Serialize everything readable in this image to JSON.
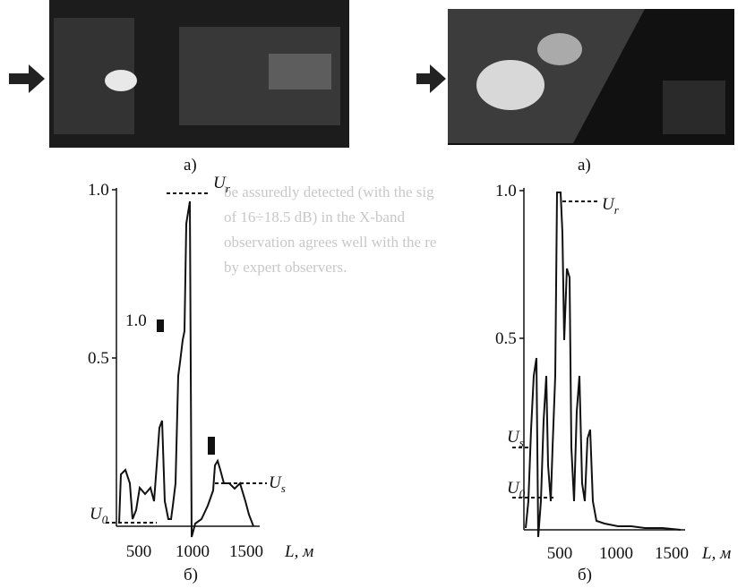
{
  "bleed_text": [
    "be assuredly detected (with the sig",
    "of 16÷18.5 dB) in the X-band",
    "observation agrees well with the re",
    "by expert observers."
  ],
  "figures": [
    {
      "image_label": "а)",
      "plot_label": "б)",
      "yticks": [
        "1.0",
        "0.5"
      ],
      "xticks": [
        "500",
        "1000",
        "1500"
      ],
      "x_label": "L, м",
      "peak_label": "1.0",
      "ur": {
        "main": "U",
        "sub": "r"
      },
      "us": {
        "main": "U",
        "sub": "s"
      },
      "u0": {
        "main": "U",
        "sub": "0"
      }
    },
    {
      "image_label": "а)",
      "plot_label": "б)",
      "yticks": [
        "1.0",
        "0.5"
      ],
      "xticks": [
        "500",
        "1000",
        "1500"
      ],
      "x_label": "L, м",
      "ur": {
        "main": "U",
        "sub": "r"
      },
      "us": {
        "main": "U",
        "sub": "s"
      },
      "u0": {
        "main": "U",
        "sub": "0"
      }
    }
  ]
}
